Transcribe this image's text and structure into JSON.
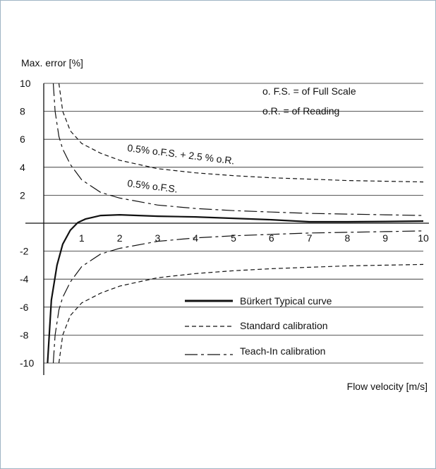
{
  "chart_data": {
    "type": "line",
    "ylabel": "Max. error [%]",
    "xlabel": "Flow velocity [m/s]",
    "xlim": [
      0,
      10
    ],
    "ylim": [
      -10,
      10
    ],
    "yticks": [
      10,
      8,
      6,
      4,
      2,
      -2,
      -4,
      -6,
      -8,
      -10
    ],
    "xticks": [
      1,
      2,
      3,
      4,
      5,
      6,
      7,
      8,
      9,
      10
    ],
    "grid": "horizontal",
    "annotations": [
      "o. F.S. = of Full Scale",
      "o.R. = of Reading"
    ],
    "curve_labels": [
      "0.5% o.F.S. + 2.5 % o.R.",
      "0.5% o.F.S."
    ],
    "legend_position": "bottom-right",
    "series": [
      {
        "name": "Bürkert Typical curve",
        "style": "solid-thick",
        "color": "#111111",
        "points": [
          [
            0.1,
            -10
          ],
          [
            0.2,
            -5.5
          ],
          [
            0.35,
            -3
          ],
          [
            0.5,
            -1.5
          ],
          [
            0.7,
            -0.5
          ],
          [
            0.9,
            0.05
          ],
          [
            1.1,
            0.3
          ],
          [
            1.5,
            0.55
          ],
          [
            2.0,
            0.6
          ],
          [
            3.0,
            0.5
          ],
          [
            4.0,
            0.45
          ],
          [
            5.0,
            0.35
          ],
          [
            6.0,
            0.25
          ],
          [
            7.0,
            0.1
          ],
          [
            8.0,
            0.1
          ],
          [
            9.0,
            0.12
          ],
          [
            10.0,
            0.15
          ]
        ]
      },
      {
        "name": "Standard calibration",
        "style": "short-dash",
        "color": "#111111",
        "points_upper": [
          [
            0.4,
            10
          ],
          [
            0.5,
            8
          ],
          [
            0.7,
            6.6
          ],
          [
            1,
            5.7
          ],
          [
            1.5,
            5
          ],
          [
            2,
            4.5
          ],
          [
            3,
            3.9
          ],
          [
            4,
            3.6
          ],
          [
            5,
            3.4
          ],
          [
            6,
            3.25
          ],
          [
            7,
            3.15
          ],
          [
            8,
            3.05
          ],
          [
            9,
            3.0
          ],
          [
            10,
            2.95
          ]
        ],
        "points_lower": [
          [
            0.4,
            -10
          ],
          [
            0.5,
            -8
          ],
          [
            0.7,
            -6.6
          ],
          [
            1,
            -5.7
          ],
          [
            1.5,
            -5
          ],
          [
            2,
            -4.5
          ],
          [
            3,
            -3.9
          ],
          [
            4,
            -3.6
          ],
          [
            5,
            -3.4
          ],
          [
            6,
            -3.25
          ],
          [
            7,
            -3.15
          ],
          [
            8,
            -3.05
          ],
          [
            9,
            -3.0
          ],
          [
            10,
            -2.95
          ]
        ]
      },
      {
        "name": "Teach-In calibration",
        "style": "long-short-dash",
        "color": "#111111",
        "points_upper": [
          [
            0.25,
            10
          ],
          [
            0.3,
            8
          ],
          [
            0.4,
            6.2
          ],
          [
            0.5,
            5.3
          ],
          [
            0.7,
            4.2
          ],
          [
            1,
            3.1
          ],
          [
            1.5,
            2.2
          ],
          [
            2,
            1.8
          ],
          [
            3,
            1.3
          ],
          [
            4,
            1.05
          ],
          [
            5,
            0.9
          ],
          [
            6,
            0.8
          ],
          [
            7,
            0.7
          ],
          [
            8,
            0.65
          ],
          [
            9,
            0.6
          ],
          [
            10,
            0.55
          ]
        ],
        "points_lower": [
          [
            0.25,
            -10
          ],
          [
            0.3,
            -8
          ],
          [
            0.4,
            -6.2
          ],
          [
            0.5,
            -5.3
          ],
          [
            0.7,
            -4.2
          ],
          [
            1,
            -3.1
          ],
          [
            1.5,
            -2.2
          ],
          [
            2,
            -1.8
          ],
          [
            3,
            -1.3
          ],
          [
            4,
            -1.05
          ],
          [
            5,
            -0.9
          ],
          [
            6,
            -0.8
          ],
          [
            7,
            -0.7
          ],
          [
            8,
            -0.65
          ],
          [
            9,
            -0.6
          ],
          [
            10,
            -0.55
          ]
        ]
      }
    ]
  }
}
